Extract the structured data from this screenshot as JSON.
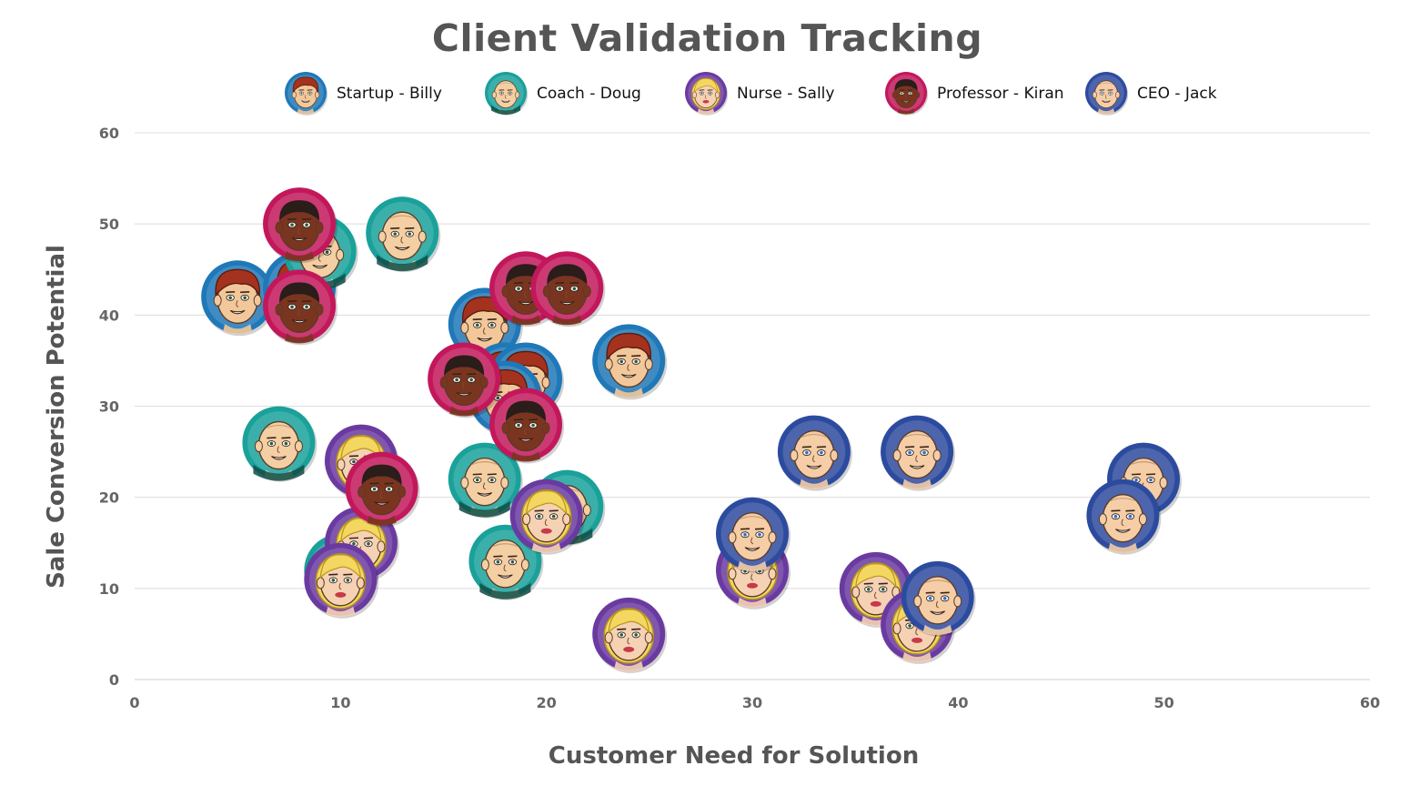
{
  "chart_data": {
    "type": "scatter",
    "title": "Client Validation Tracking",
    "xlabel": "Customer Need for Solution",
    "ylabel": "Sale Conversion Potential",
    "xlim": [
      0,
      60
    ],
    "ylim": [
      0,
      60
    ],
    "xticks": [
      0,
      10,
      20,
      30,
      40,
      50,
      60
    ],
    "yticks": [
      0,
      10,
      20,
      30,
      40,
      50,
      60
    ],
    "grid": "horizontal",
    "legend": "top-center",
    "series": [
      {
        "name": "Startup - Billy",
        "icon": "avatar-startup-billy-icon",
        "ring": "#1f78b8",
        "skin": "#f2c89b",
        "hair": "#a3321e",
        "points": [
          [
            5,
            42
          ],
          [
            8,
            43
          ],
          [
            17,
            39
          ],
          [
            24,
            35
          ],
          [
            18,
            33
          ],
          [
            19,
            33
          ],
          [
            18,
            31
          ]
        ]
      },
      {
        "name": "Coach - Doug",
        "icon": "avatar-coach-doug-icon",
        "ring": "#19a19a",
        "skin": "#f4cfa3",
        "hair": "#f4cfa3",
        "points": [
          [
            9,
            47
          ],
          [
            13,
            49
          ],
          [
            7,
            26
          ],
          [
            17,
            22
          ],
          [
            21,
            19
          ],
          [
            18,
            13
          ],
          [
            10,
            12
          ]
        ]
      },
      {
        "name": "Nurse - Sally",
        "icon": "avatar-nurse-sally-icon",
        "ring": "#6a3aa0",
        "skin": "#f6d2b4",
        "hair": "#f3d760",
        "points": [
          [
            11,
            24
          ],
          [
            11,
            15
          ],
          [
            10,
            11
          ],
          [
            20,
            18
          ],
          [
            24,
            5
          ],
          [
            30,
            12
          ],
          [
            36,
            10
          ],
          [
            38,
            6
          ]
        ]
      },
      {
        "name": "Professor - Kiran",
        "icon": "avatar-professor-kiran-icon",
        "ring": "#c2185b",
        "skin": "#7a3520",
        "hair": "#2a1d1a",
        "points": [
          [
            8,
            50
          ],
          [
            8,
            41
          ],
          [
            19,
            43
          ],
          [
            21,
            43
          ],
          [
            16,
            33
          ],
          [
            19,
            28
          ],
          [
            12,
            21
          ]
        ]
      },
      {
        "name": "CEO - Jack",
        "icon": "avatar-ceo-jack-icon",
        "ring": "#2d4b9e",
        "skin": "#f5cda6",
        "hair": "#f5cda6",
        "points": [
          [
            33,
            25
          ],
          [
            38,
            25
          ],
          [
            30,
            16
          ],
          [
            39,
            9
          ],
          [
            49,
            22
          ],
          [
            48,
            18
          ]
        ]
      }
    ]
  }
}
